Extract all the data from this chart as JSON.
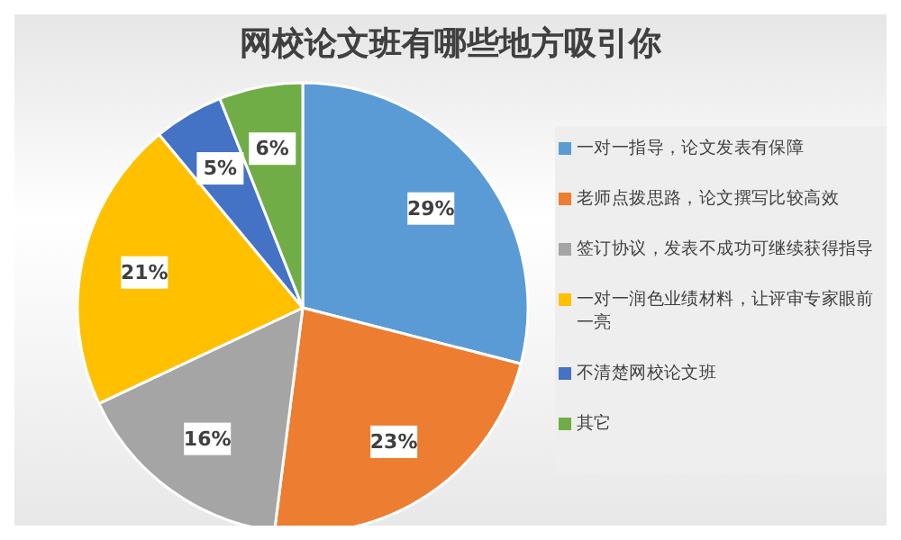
{
  "chart_data": {
    "type": "pie",
    "title": "网校论文班有哪些地方吸引你",
    "categories": [
      "一对一指导，论文发表有保障",
      "老师点拨思路，论文撰写比较高效",
      "签订协议，发表不成功可继续获得指导",
      "一对一润色业绩材料，让评审专家眼前一亮",
      "不清楚网校论文班",
      "其它"
    ],
    "values": [
      29,
      23,
      16,
      21,
      5,
      6
    ],
    "colors": [
      "#5b9bd5",
      "#ed7d31",
      "#a5a5a5",
      "#ffc000",
      "#4472c4",
      "#70ad47"
    ],
    "value_labels": [
      "29%",
      "23%",
      "16%",
      "21%",
      "5%",
      "6%"
    ],
    "legend": "right"
  }
}
